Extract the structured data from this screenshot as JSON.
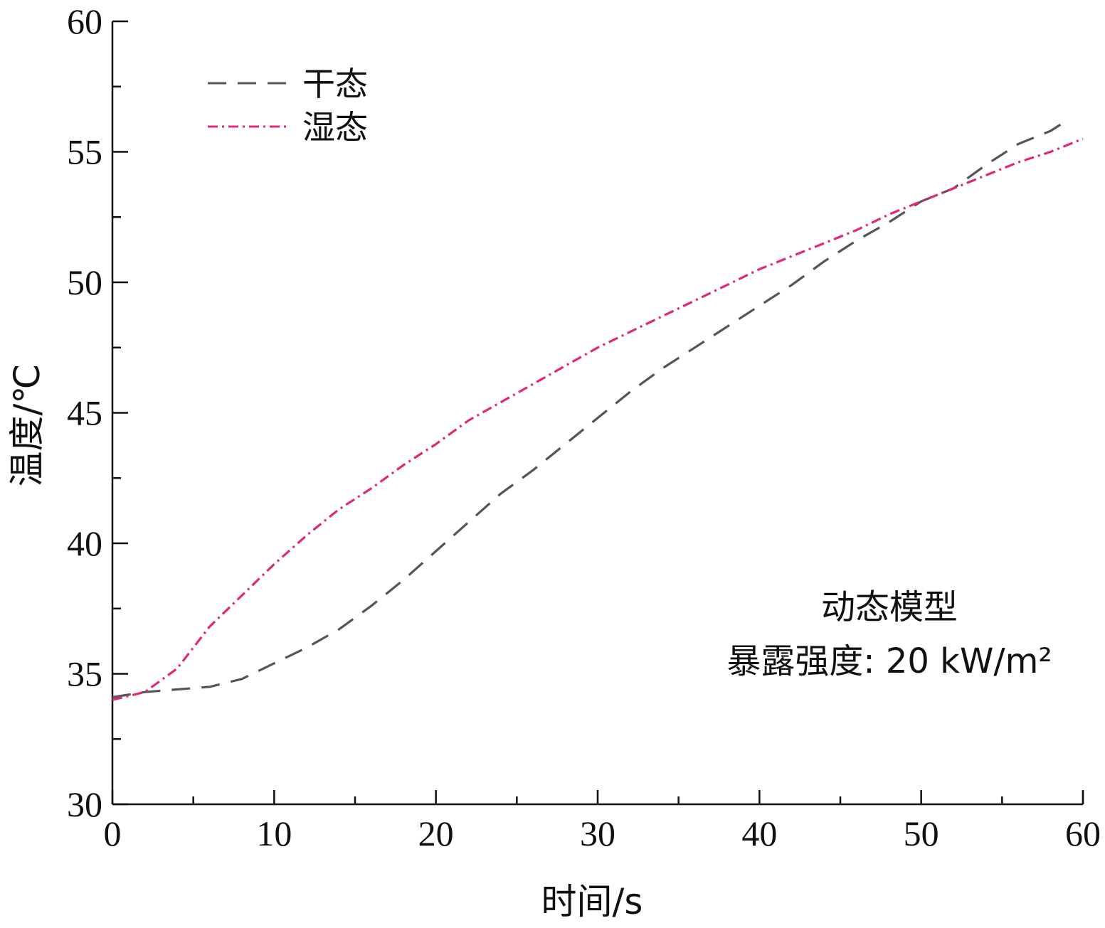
{
  "chart_data": {
    "type": "line",
    "title": "",
    "xlabel": "时间/s",
    "ylabel": "温度/℃",
    "xlim": [
      0,
      60
    ],
    "ylim": [
      30,
      60
    ],
    "x_ticks": [
      0,
      10,
      20,
      30,
      40,
      50,
      60
    ],
    "y_ticks": [
      30,
      35,
      40,
      45,
      50,
      55,
      60
    ],
    "x_tick_labels": [
      "0",
      "10",
      "20",
      "30",
      "40",
      "50",
      "60"
    ],
    "y_tick_labels": [
      "30",
      "35",
      "40",
      "45",
      "50",
      "55",
      "60"
    ],
    "grid": false,
    "legend_position": "top-left",
    "annotations": [
      "动态模型",
      "暴露强度: 20 kW/m²"
    ],
    "series": [
      {
        "name": "干态",
        "color": "#555555",
        "dash": "dashed",
        "x": [
          0,
          2,
          4,
          6,
          8,
          10,
          12,
          14,
          16,
          18,
          20,
          22,
          24,
          26,
          28,
          30,
          32,
          34,
          36,
          38,
          40,
          42,
          44,
          46,
          48,
          50,
          52,
          54,
          56,
          58,
          59
        ],
        "y": [
          34.1,
          34.3,
          34.4,
          34.5,
          34.8,
          35.4,
          36.0,
          36.7,
          37.6,
          38.6,
          39.7,
          40.8,
          41.9,
          42.8,
          43.8,
          44.8,
          45.8,
          46.7,
          47.5,
          48.3,
          49.1,
          49.9,
          50.8,
          51.6,
          52.3,
          53.1,
          53.6,
          54.5,
          55.3,
          55.8,
          56.2
        ]
      },
      {
        "name": "湿态",
        "color": "#e0287a",
        "dash": "dash-dot",
        "x": [
          0,
          2,
          4,
          6,
          8,
          10,
          12,
          14,
          16,
          18,
          20,
          22,
          24,
          26,
          28,
          30,
          32,
          34,
          36,
          38,
          40,
          42,
          44,
          46,
          48,
          50,
          52,
          54,
          56,
          58,
          60
        ],
        "y": [
          34.0,
          34.3,
          35.2,
          36.8,
          38.0,
          39.2,
          40.3,
          41.3,
          42.1,
          43.0,
          43.8,
          44.7,
          45.4,
          46.1,
          46.8,
          47.5,
          48.1,
          48.7,
          49.3,
          49.9,
          50.5,
          51.0,
          51.5,
          52.0,
          52.6,
          53.1,
          53.6,
          54.1,
          54.6,
          55.0,
          55.5
        ]
      }
    ]
  }
}
